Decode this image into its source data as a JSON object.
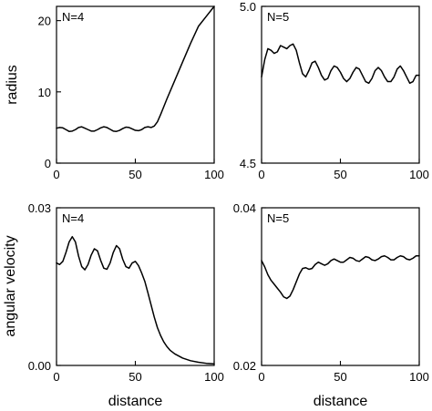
{
  "chart_data": [
    {
      "type": "line",
      "panel_label": "N=4",
      "xlabel": "",
      "ylabel": "radius",
      "xlim": [
        0,
        100
      ],
      "ylim": [
        0,
        22
      ],
      "xticks": [
        "0",
        "50",
        "100"
      ],
      "yticks": [
        "0",
        "10",
        "20"
      ],
      "series": [
        {
          "x": [
            0,
            2,
            4,
            6,
            8,
            10,
            12,
            14,
            16,
            18,
            20,
            22,
            24,
            26,
            28,
            30,
            32,
            34,
            36,
            38,
            40,
            42,
            44,
            46,
            48,
            50,
            52,
            54,
            56,
            58,
            60,
            62,
            64,
            66,
            68,
            70,
            75,
            80,
            85,
            90,
            95,
            100
          ],
          "values": [
            4.9,
            5.0,
            4.95,
            4.7,
            4.45,
            4.5,
            4.7,
            5.0,
            5.1,
            4.9,
            4.7,
            4.5,
            4.5,
            4.7,
            4.95,
            5.1,
            5.0,
            4.75,
            4.5,
            4.45,
            4.6,
            4.85,
            5.05,
            5.0,
            4.8,
            4.6,
            4.55,
            4.7,
            5.0,
            5.1,
            5.0,
            5.2,
            5.8,
            6.8,
            7.9,
            9.0,
            11.6,
            14.2,
            16.8,
            19.2,
            20.6,
            22.0
          ]
        }
      ]
    },
    {
      "type": "line",
      "panel_label": "N=5",
      "xlabel": "",
      "ylabel": "",
      "xlim": [
        0,
        100
      ],
      "ylim": [
        4.5,
        5.0
      ],
      "xticks": [
        "0",
        "50",
        "100"
      ],
      "yticks": [
        "4.5",
        "5.0"
      ],
      "series": [
        {
          "x": [
            0,
            2,
            4,
            6,
            8,
            10,
            12,
            14,
            16,
            18,
            20,
            22,
            24,
            26,
            28,
            30,
            32,
            34,
            36,
            38,
            40,
            42,
            44,
            46,
            48,
            50,
            52,
            54,
            56,
            58,
            60,
            62,
            64,
            66,
            68,
            70,
            72,
            74,
            76,
            78,
            80,
            82,
            84,
            86,
            88,
            90,
            92,
            94,
            96,
            98,
            100
          ],
          "values": [
            4.775,
            4.83,
            4.865,
            4.86,
            4.85,
            4.855,
            4.875,
            4.87,
            4.865,
            4.875,
            4.88,
            4.86,
            4.82,
            4.785,
            4.775,
            4.795,
            4.82,
            4.825,
            4.805,
            4.78,
            4.765,
            4.77,
            4.795,
            4.81,
            4.805,
            4.79,
            4.77,
            4.76,
            4.77,
            4.79,
            4.805,
            4.8,
            4.78,
            4.76,
            4.755,
            4.77,
            4.795,
            4.805,
            4.795,
            4.775,
            4.76,
            4.76,
            4.775,
            4.8,
            4.81,
            4.795,
            4.775,
            4.755,
            4.76,
            4.78,
            4.78
          ]
        }
      ]
    },
    {
      "type": "line",
      "panel_label": "N=4",
      "xlabel": "distance",
      "ylabel": "angular velocity",
      "xlim": [
        0,
        100
      ],
      "ylim": [
        0.0,
        0.03
      ],
      "xticks": [
        "0",
        "50",
        "100"
      ],
      "yticks": [
        "0.00",
        "0.03"
      ],
      "series": [
        {
          "x": [
            0,
            2,
            4,
            6,
            8,
            10,
            12,
            14,
            16,
            18,
            20,
            22,
            24,
            26,
            28,
            30,
            32,
            34,
            36,
            38,
            40,
            42,
            44,
            46,
            48,
            50,
            52,
            54,
            56,
            58,
            60,
            62,
            64,
            66,
            68,
            70,
            72,
            75,
            80,
            85,
            90,
            95,
            100
          ],
          "values": [
            0.0195,
            0.0192,
            0.0198,
            0.0215,
            0.0235,
            0.0245,
            0.0235,
            0.0208,
            0.0188,
            0.0182,
            0.0192,
            0.021,
            0.0222,
            0.0218,
            0.02,
            0.0185,
            0.0183,
            0.0195,
            0.0215,
            0.0228,
            0.0222,
            0.0202,
            0.0188,
            0.0185,
            0.0195,
            0.0198,
            0.019,
            0.0176,
            0.016,
            0.0138,
            0.0115,
            0.0092,
            0.0072,
            0.0057,
            0.0045,
            0.0036,
            0.0029,
            0.0022,
            0.0014,
            0.0009,
            0.0006,
            0.0004,
            0.0003
          ]
        }
      ]
    },
    {
      "type": "line",
      "panel_label": "N=5",
      "xlabel": "distance",
      "ylabel": "",
      "xlim": [
        0,
        100
      ],
      "ylim": [
        0.02,
        0.04
      ],
      "xticks": [
        "0",
        "50",
        "100"
      ],
      "yticks": [
        "0.02",
        "0.04"
      ],
      "series": [
        {
          "x": [
            0,
            2,
            4,
            6,
            8,
            10,
            12,
            14,
            16,
            18,
            20,
            22,
            24,
            26,
            28,
            30,
            32,
            34,
            36,
            38,
            40,
            42,
            44,
            46,
            48,
            50,
            52,
            54,
            56,
            58,
            60,
            62,
            64,
            66,
            68,
            70,
            72,
            74,
            76,
            78,
            80,
            82,
            84,
            86,
            88,
            90,
            92,
            94,
            96,
            98,
            100
          ],
          "values": [
            0.0333,
            0.0325,
            0.0315,
            0.0308,
            0.0303,
            0.0298,
            0.0293,
            0.0287,
            0.0285,
            0.0288,
            0.0296,
            0.0306,
            0.0316,
            0.0323,
            0.0324,
            0.0322,
            0.0323,
            0.0328,
            0.0331,
            0.0329,
            0.0327,
            0.0329,
            0.0333,
            0.0335,
            0.0333,
            0.0331,
            0.0331,
            0.0334,
            0.0337,
            0.0336,
            0.0333,
            0.0332,
            0.0335,
            0.0338,
            0.0337,
            0.0334,
            0.0333,
            0.0335,
            0.0338,
            0.0339,
            0.0337,
            0.0334,
            0.0334,
            0.0337,
            0.0339,
            0.0338,
            0.0335,
            0.0334,
            0.0336,
            0.0339,
            0.0339
          ]
        }
      ]
    }
  ]
}
